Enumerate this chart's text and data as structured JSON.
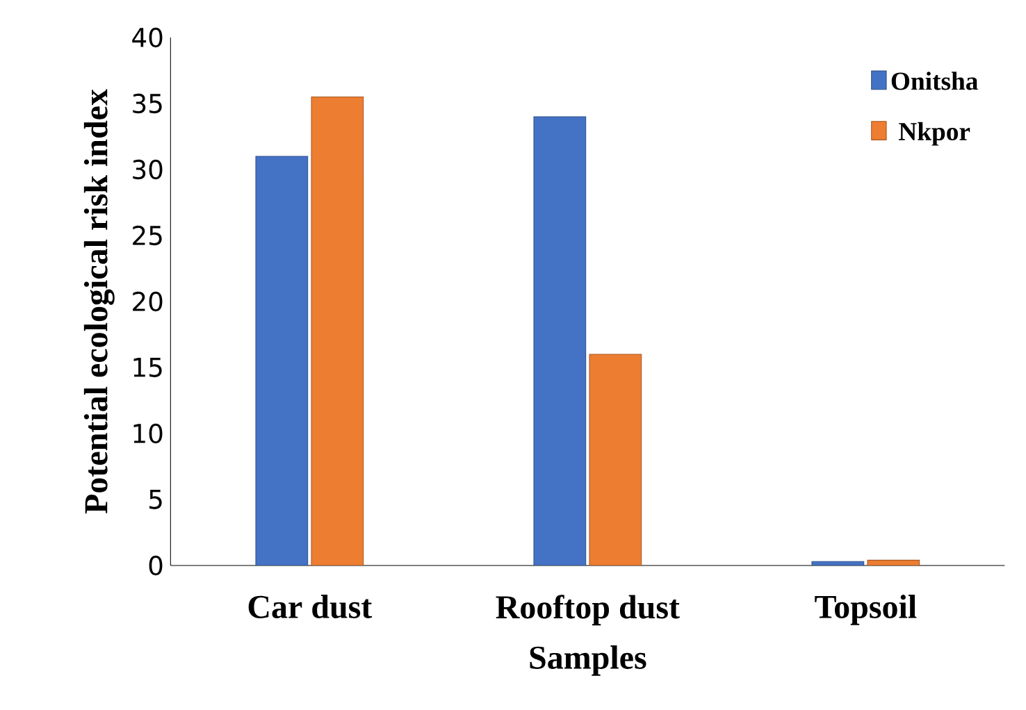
{
  "chart_data": {
    "type": "bar",
    "xlabel": "Samples",
    "ylabel": "Potential ecological risk index",
    "categories": [
      "Car dust",
      "Rooftop dust",
      "Topsoil"
    ],
    "series": [
      {
        "name": "Onitsha",
        "color": "#4472c4",
        "values": [
          31,
          34,
          0.3
        ]
      },
      {
        "name": "Nkpor",
        "color": "#ed7d31",
        "values": [
          35.5,
          16,
          0.4
        ]
      }
    ],
    "ylim": [
      0,
      40
    ],
    "yticks": [
      0,
      5,
      10,
      15,
      20,
      25,
      30,
      35,
      40
    ],
    "grid": false,
    "legend": "top right"
  }
}
